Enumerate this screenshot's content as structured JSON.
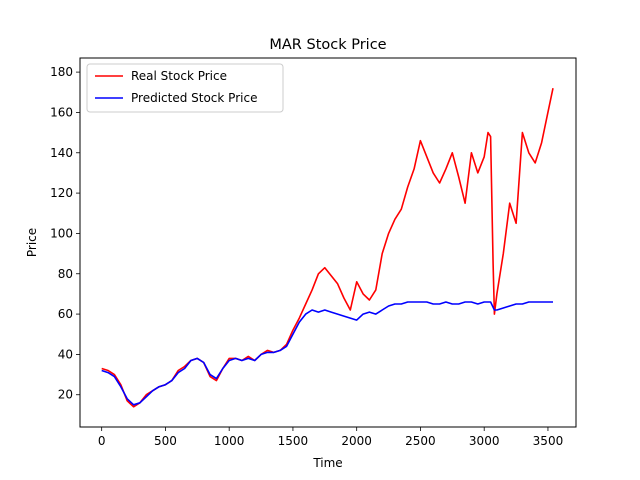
{
  "chart_data": {
    "type": "line",
    "title": "MAR Stock Price",
    "xlabel": "Time",
    "ylabel": "Price",
    "xlim": [
      -170,
      3720
    ],
    "ylim": [
      4,
      187
    ],
    "xticks": [
      0,
      500,
      1000,
      1500,
      2000,
      2500,
      3000,
      3500
    ],
    "yticks": [
      20,
      40,
      60,
      80,
      100,
      120,
      140,
      160,
      180
    ],
    "grid": false,
    "legend_position": "top-left",
    "series": [
      {
        "name": "Real Stock Price",
        "color": "#ff0000",
        "x": [
          0,
          50,
          100,
          150,
          200,
          250,
          300,
          350,
          400,
          450,
          500,
          550,
          600,
          650,
          700,
          750,
          800,
          850,
          900,
          950,
          1000,
          1050,
          1100,
          1150,
          1200,
          1250,
          1300,
          1350,
          1400,
          1450,
          1500,
          1550,
          1600,
          1650,
          1700,
          1750,
          1800,
          1850,
          1900,
          1950,
          2000,
          2050,
          2100,
          2150,
          2200,
          2250,
          2300,
          2350,
          2400,
          2450,
          2500,
          2550,
          2600,
          2650,
          2700,
          2750,
          2800,
          2850,
          2900,
          2950,
          3000,
          3030,
          3050,
          3070,
          3080,
          3100,
          3150,
          3200,
          3250,
          3300,
          3350,
          3400,
          3450,
          3500,
          3540
        ],
        "y": [
          33,
          32,
          30,
          25,
          17,
          14,
          16,
          20,
          22,
          24,
          25,
          27,
          32,
          34,
          37,
          38,
          36,
          29,
          27,
          33,
          38,
          38,
          37,
          39,
          37,
          40,
          42,
          41,
          42,
          45,
          52,
          58,
          65,
          72,
          80,
          83,
          79,
          75,
          68,
          62,
          76,
          70,
          67,
          72,
          90,
          100,
          107,
          112,
          123,
          132,
          146,
          138,
          130,
          125,
          132,
          140,
          128,
          115,
          140,
          130,
          138,
          150,
          148,
          85,
          60,
          70,
          90,
          115,
          105,
          150,
          140,
          135,
          145,
          160,
          172
        ]
      },
      {
        "name": "Predicted Stock Price",
        "color": "#0000ff",
        "x": [
          0,
          50,
          100,
          150,
          200,
          250,
          300,
          350,
          400,
          450,
          500,
          550,
          600,
          650,
          700,
          750,
          800,
          850,
          900,
          950,
          1000,
          1050,
          1100,
          1150,
          1200,
          1250,
          1300,
          1350,
          1400,
          1450,
          1500,
          1550,
          1600,
          1650,
          1700,
          1750,
          1800,
          1850,
          1900,
          1950,
          2000,
          2050,
          2100,
          2150,
          2200,
          2250,
          2300,
          2350,
          2400,
          2450,
          2500,
          2550,
          2600,
          2650,
          2700,
          2750,
          2800,
          2850,
          2900,
          2950,
          3000,
          3050,
          3080,
          3100,
          3150,
          3200,
          3250,
          3300,
          3350,
          3400,
          3450,
          3500,
          3540
        ],
        "y": [
          32,
          31,
          29,
          24,
          18,
          15,
          16,
          19,
          22,
          24,
          25,
          27,
          31,
          33,
          37,
          38,
          36,
          30,
          28,
          33,
          37,
          38,
          37,
          38,
          37,
          40,
          41,
          41,
          42,
          44,
          50,
          56,
          60,
          62,
          61,
          62,
          61,
          60,
          59,
          58,
          57,
          60,
          61,
          60,
          62,
          64,
          65,
          65,
          66,
          66,
          66,
          66,
          65,
          65,
          66,
          65,
          65,
          66,
          66,
          65,
          66,
          66,
          62,
          62,
          63,
          64,
          65,
          65,
          66,
          66,
          66,
          66,
          66
        ]
      }
    ]
  }
}
